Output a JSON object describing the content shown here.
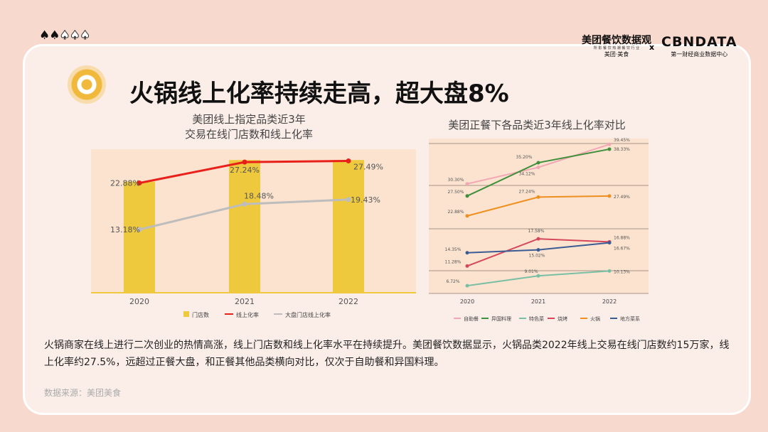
{
  "header": {
    "heat_level": 2,
    "heat_max": 5,
    "logo_left": "美团餐饮数据观",
    "logo_left_sub": "所 影 餐 饮 热 潮 餐 饮 行 业",
    "logo_left_brand": "美团·美食",
    "separator": "x",
    "logo_right": "CBNDATA",
    "logo_right_sub": "第一财经商业数据中心"
  },
  "title": "火锅线上化率持续走高，超大盘8%",
  "left_chart_title": [
    "美团线上指定品类近3年",
    "交易在线门店数和线上化率"
  ],
  "right_chart_title": "美团正餐下各品类近3年线上化率对比",
  "chart_data": [
    {
      "type": "bar+line",
      "title": "美团线上指定品类近3年交易在线门店数和线上化率",
      "categories": [
        "2020",
        "2021",
        "2022"
      ],
      "series": [
        {
          "name": "门店数",
          "kind": "bar",
          "values": [
            0.77,
            0.92,
            0.92
          ],
          "color": "#efc93d",
          "note": "relative, unlabeled"
        },
        {
          "name": "线上化率",
          "kind": "line",
          "values": [
            22.88,
            27.24,
            27.49
          ],
          "labels": [
            "22.88%",
            "27.24%",
            "27.49%"
          ],
          "color": "#e8201a"
        },
        {
          "name": "大盘门店线上化率",
          "kind": "line",
          "values": [
            13.18,
            18.48,
            19.43
          ],
          "labels": [
            "13.18%",
            "18.48%",
            "19.43%"
          ],
          "color": "#bdbdbd"
        }
      ]
    },
    {
      "type": "line",
      "title": "美团正餐下各品类近3年线上化率对比",
      "categories": [
        "2020",
        "2021",
        "2022"
      ],
      "ylim": [
        0,
        40
      ],
      "series": [
        {
          "name": "自助餐",
          "values": [
            30.3,
            34.12,
            39.45
          ],
          "labels": [
            "30.30%",
            "34.12%",
            "39.45%"
          ],
          "color": "#f2a8b4"
        },
        {
          "name": "异国料理",
          "values": [
            27.5,
            35.2,
            38.33
          ],
          "labels": [
            "27.50%",
            "35.20%",
            "38.33%"
          ],
          "color": "#3f8f3b"
        },
        {
          "name": "特色菜",
          "values": [
            6.72,
            9.01,
            10.13
          ],
          "labels": [
            "6.72%",
            "9.01%",
            "10.13%"
          ],
          "color": "#78bfa4"
        },
        {
          "name": "烧烤",
          "values": [
            11.28,
            17.58,
            16.88
          ],
          "labels": [
            "11.28%",
            "17.58%",
            "16.88%"
          ],
          "color": "#d6475a"
        },
        {
          "name": "火锅",
          "values": [
            22.88,
            27.24,
            27.49
          ],
          "labels": [
            "22.88%",
            "27.24%",
            "27.49%"
          ],
          "color": "#ef8f1f"
        },
        {
          "name": "地方菜系",
          "values": [
            14.35,
            15.02,
            16.67
          ],
          "labels": [
            "14.35%",
            "15.02%",
            "16.67%"
          ],
          "color": "#3b5b94"
        }
      ]
    }
  ],
  "body": "火锅商家在线上进行二次创业的热情高涨，线上门店数和线上化率水平在持续提升。美团餐饮数据显示，火锅品类2022年线上交易在线门店数约15万家，线上化率约27.5%，远超过正餐大盘，和正餐其他品类横向对比，仅次于自助餐和异国料理。",
  "source": "数据来源：美团美食"
}
